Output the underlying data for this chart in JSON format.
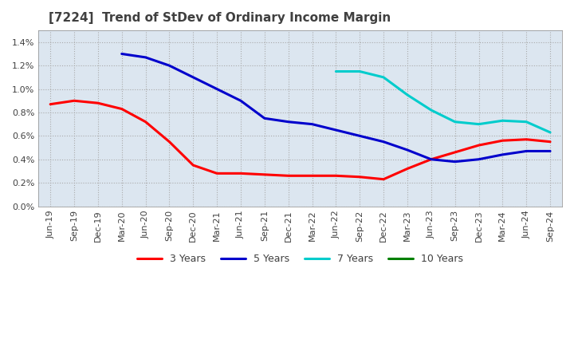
{
  "title": "[7224]  Trend of StDev of Ordinary Income Margin",
  "title_color": "#404040",
  "background_color": "#ffffff",
  "plot_bg_color": "#dce6f0",
  "grid_color": "#aaaaaa",
  "ylim": [
    0.0,
    0.015
  ],
  "yticks": [
    0.0,
    0.002,
    0.004,
    0.006,
    0.008,
    0.01,
    0.012,
    0.014
  ],
  "ytick_labels": [
    "0.0%",
    "0.2%",
    "0.4%",
    "0.6%",
    "0.8%",
    "1.0%",
    "1.2%",
    "1.4%"
  ],
  "x_labels": [
    "Jun-19",
    "Sep-19",
    "Dec-19",
    "Mar-20",
    "Jun-20",
    "Sep-20",
    "Dec-20",
    "Mar-21",
    "Jun-21",
    "Sep-21",
    "Dec-21",
    "Mar-22",
    "Jun-22",
    "Sep-22",
    "Dec-22",
    "Mar-23",
    "Jun-23",
    "Sep-23",
    "Dec-23",
    "Mar-24",
    "Jun-24",
    "Sep-24"
  ],
  "series": {
    "3 Years": {
      "color": "#ff0000",
      "data": [
        0.0087,
        0.009,
        0.0088,
        0.0083,
        0.0072,
        0.0055,
        0.0035,
        0.0028,
        0.0028,
        0.0027,
        0.0026,
        0.0026,
        0.0026,
        0.0025,
        0.0023,
        0.0032,
        0.004,
        0.0046,
        0.0052,
        0.0056,
        0.0057,
        0.0055
      ]
    },
    "5 Years": {
      "color": "#0000cc",
      "data": [
        null,
        null,
        null,
        0.013,
        0.0127,
        0.012,
        0.011,
        0.01,
        0.009,
        0.0075,
        0.0072,
        0.007,
        0.0065,
        0.006,
        0.0055,
        0.0048,
        0.004,
        0.0038,
        0.004,
        0.0044,
        0.0047,
        0.0047
      ]
    },
    "7 Years": {
      "color": "#00cccc",
      "data": [
        null,
        null,
        null,
        null,
        null,
        null,
        null,
        null,
        null,
        null,
        null,
        null,
        0.0115,
        0.0115,
        0.011,
        0.0095,
        0.0082,
        0.0072,
        0.007,
        0.0073,
        0.0072,
        0.0063
      ]
    },
    "10 Years": {
      "color": "#008000",
      "data": [
        null,
        null,
        null,
        null,
        null,
        null,
        null,
        null,
        null,
        null,
        null,
        null,
        null,
        null,
        null,
        null,
        null,
        null,
        null,
        null,
        null,
        null
      ]
    }
  },
  "legend_loc": "lower center",
  "line_width": 2.2
}
